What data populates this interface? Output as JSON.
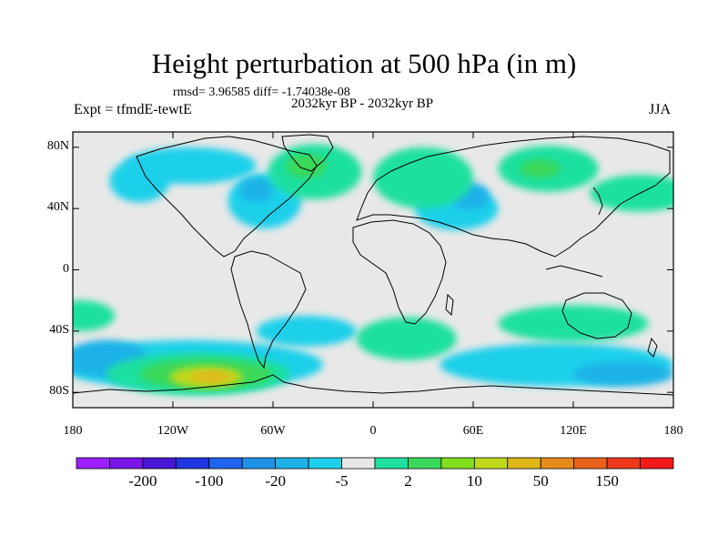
{
  "title": "Height perturbation at 500 hPa (in m)",
  "stats": "rmsd= 3.96585 diff= -1.74038e-08",
  "period": "2032kyr BP - 2032kyr BP",
  "experiment": "Expt = tfmdE-tewtE",
  "season": "JJA",
  "latitude_labels": [
    {
      "label": "80N",
      "lat": 80
    },
    {
      "label": "40N",
      "lat": 40
    },
    {
      "label": "0",
      "lat": 0
    },
    {
      "label": "40S",
      "lat": -40
    },
    {
      "label": "80S",
      "lat": -80
    }
  ],
  "longitude_labels": [
    {
      "label": "180",
      "lon": -180
    },
    {
      "label": "120W",
      "lon": -120
    },
    {
      "label": "60W",
      "lon": -60
    },
    {
      "label": "0",
      "lon": 0
    },
    {
      "label": "60E",
      "lon": 60
    },
    {
      "label": "120E",
      "lon": 120
    },
    {
      "label": "180",
      "lon": 180
    }
  ],
  "colorbar": {
    "colors": [
      "#9a20ff",
      "#7a16e8",
      "#4a16d4",
      "#1f36e0",
      "#1f64ee",
      "#1f92e8",
      "#1fb2e8",
      "#1fd0ea",
      "#e8e8e8",
      "#1fe0a0",
      "#3ad85a",
      "#80e01e",
      "#c0d81a",
      "#e0b81a",
      "#e68a1a",
      "#ea621a",
      "#ee3a1a",
      "#f51a1a"
    ],
    "labels": [
      "-200",
      "-100",
      "-20",
      "-5",
      "2",
      "10",
      "50",
      "150"
    ]
  },
  "map_fields": [
    {
      "level": -5,
      "color": "#1fd0ea",
      "lon": -140,
      "lat": 58,
      "rx": 18,
      "ry": 14
    },
    {
      "level": -5,
      "color": "#1fd0ea",
      "lon": -65,
      "lat": 45,
      "rx": 22,
      "ry": 18
    },
    {
      "level": -5,
      "color": "#1fd0ea",
      "lon": 50,
      "lat": 40,
      "rx": 25,
      "ry": 14
    },
    {
      "level": -5,
      "color": "#1fd0ea",
      "lon": -110,
      "lat": 68,
      "rx": 40,
      "ry": 12
    },
    {
      "level": -5,
      "color": "#1fd0ea",
      "lon": -40,
      "lat": -40,
      "rx": 30,
      "ry": 10
    },
    {
      "level": -5,
      "color": "#1fd0ea",
      "lon": 110,
      "lat": -62,
      "rx": 70,
      "ry": 14
    },
    {
      "level": -5,
      "color": "#1fd0ea",
      "lon": -110,
      "lat": -62,
      "rx": 80,
      "ry": 16
    },
    {
      "level": -20,
      "color": "#1fb2e8",
      "lon": 58,
      "lat": 48,
      "rx": 12,
      "ry": 9
    },
    {
      "level": -20,
      "color": "#1fb2e8",
      "lon": -70,
      "lat": 52,
      "rx": 10,
      "ry": 8
    },
    {
      "level": -20,
      "color": "#1fb2e8",
      "lon": -160,
      "lat": -58,
      "rx": 25,
      "ry": 12
    },
    {
      "level": -20,
      "color": "#1fb2e8",
      "lon": 150,
      "lat": -68,
      "rx": 30,
      "ry": 8
    },
    {
      "level": 2,
      "color": "#1fe0a0",
      "lon": -35,
      "lat": 64,
      "rx": 28,
      "ry": 18
    },
    {
      "level": 2,
      "color": "#1fe0a0",
      "lon": 30,
      "lat": 60,
      "rx": 30,
      "ry": 20
    },
    {
      "level": 2,
      "color": "#1fe0a0",
      "lon": 105,
      "lat": 66,
      "rx": 30,
      "ry": 15
    },
    {
      "level": 2,
      "color": "#1fe0a0",
      "lon": 160,
      "lat": 50,
      "rx": 30,
      "ry": 12
    },
    {
      "level": 2,
      "color": "#1fe0a0",
      "lon": -175,
      "lat": -30,
      "rx": 20,
      "ry": 10
    },
    {
      "level": 2,
      "color": "#1fe0a0",
      "lon": 20,
      "lat": -45,
      "rx": 30,
      "ry": 14
    },
    {
      "level": 2,
      "color": "#1fe0a0",
      "lon": 120,
      "lat": -35,
      "rx": 45,
      "ry": 12
    },
    {
      "level": 2,
      "color": "#1fe0a0",
      "lon": -105,
      "lat": -68,
      "rx": 55,
      "ry": 14
    },
    {
      "level": 10,
      "color": "#3ad85a",
      "lon": -40,
      "lat": 68,
      "rx": 12,
      "ry": 8
    },
    {
      "level": 10,
      "color": "#3ad85a",
      "lon": 100,
      "lat": 66,
      "rx": 12,
      "ry": 6
    },
    {
      "level": 10,
      "color": "#3ad85a",
      "lon": -100,
      "lat": -68,
      "rx": 40,
      "ry": 10
    },
    {
      "level": 50,
      "color": "#c0d81a",
      "lon": -100,
      "lat": -70,
      "rx": 22,
      "ry": 7
    },
    {
      "level": 150,
      "color": "#e0b81a",
      "lon": -97,
      "lat": -70,
      "rx": 12,
      "ry": 4
    }
  ]
}
